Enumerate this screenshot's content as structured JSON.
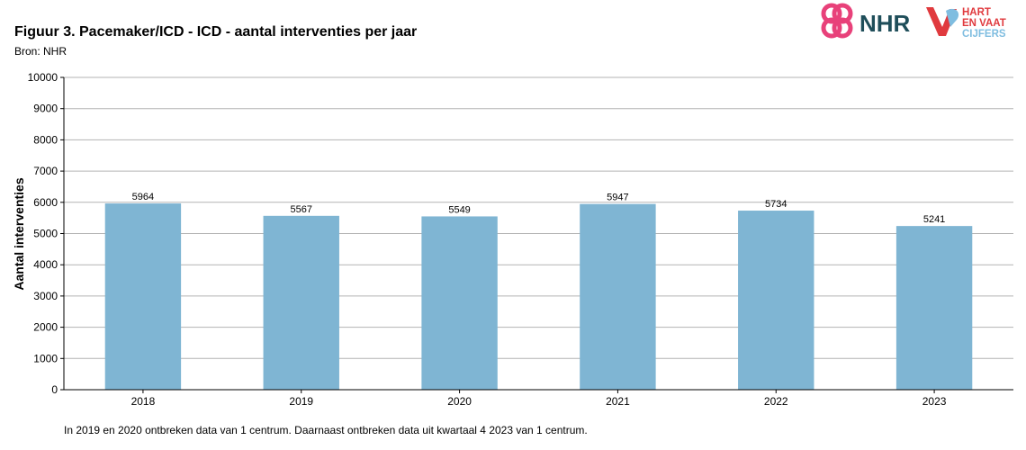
{
  "header": {
    "title": "Figuur 3. Pacemaker/ICD - ICD - aantal interventies per jaar",
    "source": "Bron: NHR"
  },
  "logos": {
    "nhr_text": "NHR",
    "hartenvaatcijfers_lines": [
      "HART",
      "EN VAAT",
      "CIJFERS"
    ],
    "nhr_color": "#e8417a",
    "nhr_text_color": "#1f4e5a",
    "heart_red": "#e03a3e",
    "heart_blue": "#7fbde0"
  },
  "footnote": "In 2019 en 2020 ontbreken data van 1 centrum. Daarnaast ontbreken data uit kwartaal 4 2023 van 1 centrum.",
  "chart_data": {
    "type": "bar",
    "categories": [
      "2018",
      "2019",
      "2020",
      "2021",
      "2022",
      "2023"
    ],
    "values": [
      5964,
      5567,
      5549,
      5947,
      5734,
      5241
    ],
    "data_labels": [
      "5964",
      "5567",
      "5549",
      "5947",
      "5734",
      "5241"
    ],
    "title": "Figuur 3. Pacemaker/ICD - ICD - aantal interventies per jaar",
    "xlabel": "",
    "ylabel": "Aantal interventies",
    "ylim": [
      0,
      10000
    ],
    "yticks": [
      0,
      1000,
      2000,
      3000,
      4000,
      5000,
      6000,
      7000,
      8000,
      9000,
      10000
    ],
    "ytick_labels": [
      "0",
      "1000",
      "2000",
      "3000",
      "4000",
      "5000",
      "6000",
      "7000",
      "8000",
      "9000",
      "10000"
    ],
    "grid": true,
    "bar_color": "#7fb5d3"
  }
}
